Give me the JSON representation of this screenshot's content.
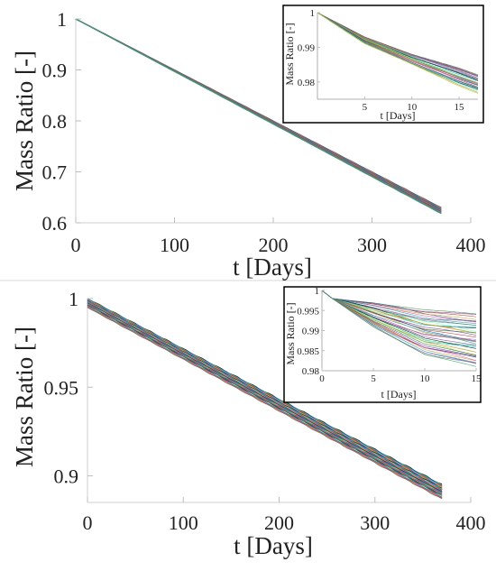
{
  "chart_data": [
    {
      "type": "line",
      "id": "top-main",
      "xlabel": "t [Days]",
      "ylabel": "Mass Ratio [-]",
      "xlim": [
        0,
        400
      ],
      "ylim": [
        0.6,
        1.0
      ],
      "xticks": [
        "0",
        "100",
        "200",
        "300",
        "400"
      ],
      "yticks": [
        "0.6",
        "0.7",
        "0.8",
        "0.9",
        "1"
      ],
      "grid": false,
      "series_count": 30,
      "series_colors": [
        "#2e8b2e",
        "#7b3fa0",
        "#c0392b",
        "#1f4fa8",
        "#d4a017",
        "#e64fb0",
        "#17a2b8",
        "#6d6d6d",
        "#8e44ad",
        "#27ae60"
      ],
      "series_envelope": {
        "x": [
          0,
          370
        ],
        "y_upper": [
          1.0,
          0.63
        ],
        "y_lower": [
          1.0,
          0.618
        ]
      }
    },
    {
      "type": "line",
      "id": "top-inset",
      "xlabel": "t [Days]",
      "ylabel": "Mass Ratio [-]",
      "xlim": [
        0,
        17
      ],
      "ylim": [
        0.975,
        1.0
      ],
      "xticks": [
        "5",
        "10",
        "15"
      ],
      "yticks": [
        "0.98",
        "0.99",
        "1"
      ],
      "series_count": 30,
      "series_envelope": {
        "x": [
          0,
          5,
          10,
          15,
          17
        ],
        "y_upper": [
          1.0,
          0.993,
          0.988,
          0.984,
          0.982
        ],
        "y_lower": [
          1.0,
          0.991,
          0.985,
          0.979,
          0.977
        ]
      }
    },
    {
      "type": "line",
      "id": "bottom-main",
      "xlabel": "t [Days]",
      "ylabel": "Mass Ratio [-]",
      "xlim": [
        0,
        400
      ],
      "ylim": [
        0.885,
        1.0
      ],
      "xticks": [
        "0",
        "100",
        "200",
        "300",
        "400"
      ],
      "yticks": [
        "0.9",
        "0.95",
        "1"
      ],
      "grid": false,
      "series_count": 40,
      "series_colors": [
        "#1a1a1a",
        "#2e8b2e",
        "#1f4fa8",
        "#00bcd4",
        "#7fffd4",
        "#c0392b",
        "#8e44ad",
        "#e64fb0",
        "#d4a017",
        "#6d6d6d"
      ],
      "series_envelope": {
        "x": [
          0,
          370
        ],
        "y_upper": [
          1.0,
          0.895
        ],
        "y_lower": [
          0.995,
          0.887
        ]
      }
    },
    {
      "type": "line",
      "id": "bottom-inset",
      "xlabel": "t [Days]",
      "ylabel": "Mass Ratio [-]",
      "xlim": [
        0,
        15
      ],
      "ylim": [
        0.98,
        1.0
      ],
      "xticks": [
        "0",
        "5",
        "10",
        "15"
      ],
      "yticks": [
        "0.98",
        "0.985",
        "0.99",
        "0.995",
        "1"
      ],
      "series_count": 40,
      "series_envelope": {
        "x": [
          0,
          1,
          5,
          10,
          15
        ],
        "y_upper": [
          1.0,
          0.998,
          0.997,
          0.995,
          0.994
        ],
        "y_lower": [
          1.0,
          0.998,
          0.991,
          0.984,
          0.981
        ]
      }
    }
  ]
}
